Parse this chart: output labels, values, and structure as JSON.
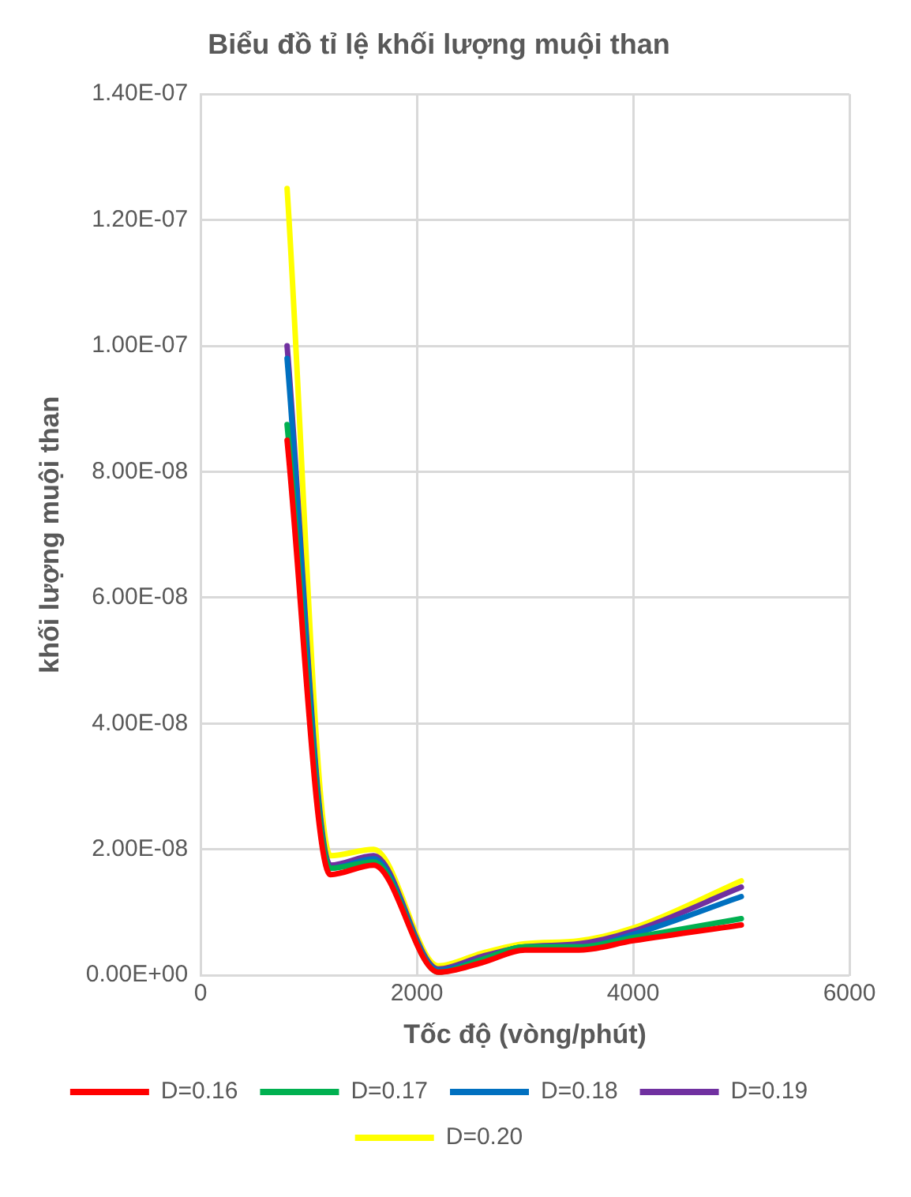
{
  "chart_data": {
    "type": "line",
    "title": "Biểu đồ tỉ lệ khối lượng muội than",
    "xlabel": "Tốc độ (vòng/phút)",
    "ylabel": "khối lượng muội than",
    "x": [
      800,
      1200,
      1600,
      2200,
      2600,
      3000,
      3500,
      4000,
      5000
    ],
    "series": [
      {
        "name": "D=0.16",
        "color": "#ff0000",
        "values": [
          8.5e-08,
          1.6e-08,
          1.75e-08,
          5e-10,
          2e-09,
          4e-09,
          4e-09,
          5.5e-09,
          8e-09
        ]
      },
      {
        "name": "D=0.17",
        "color": "#00b050",
        "values": [
          8.75e-08,
          1.7e-08,
          1.8e-08,
          5e-10,
          2.5e-09,
          4.5e-09,
          4.5e-09,
          6e-09,
          9e-09
        ]
      },
      {
        "name": "D=0.18",
        "color": "#0070c0",
        "values": [
          9.8e-08,
          1.7e-08,
          1.85e-08,
          8e-10,
          2.5e-09,
          4.5e-09,
          4.5e-09,
          6.5e-09,
          1.25e-08
        ]
      },
      {
        "name": "D=0.19",
        "color": "#7030a0",
        "values": [
          1e-07,
          1.75e-08,
          1.9e-08,
          1e-09,
          3e-09,
          4.5e-09,
          5e-09,
          7e-09,
          1.4e-08
        ]
      },
      {
        "name": "D=0.20",
        "color": "#ffff00",
        "values": [
          1.25e-07,
          1.9e-08,
          2e-08,
          1.5e-09,
          3.5e-09,
          5e-09,
          5.5e-09,
          7.5e-09,
          1.5e-08
        ]
      }
    ],
    "xlim": [
      0,
      6000
    ],
    "xticks": [
      0,
      2000,
      4000,
      6000
    ],
    "ylim": [
      0,
      1.4e-07
    ],
    "yticks": [
      {
        "value": 0,
        "label": "0.00E+00"
      },
      {
        "value": 2e-08,
        "label": "2.00E-08"
      },
      {
        "value": 4e-08,
        "label": "4.00E-08"
      },
      {
        "value": 6e-08,
        "label": "6.00E-08"
      },
      {
        "value": 8e-08,
        "label": "8.00E-08"
      },
      {
        "value": 1e-07,
        "label": "1.00E-07"
      },
      {
        "value": 1.2e-07,
        "label": "1.20E-07"
      },
      {
        "value": 1.4e-07,
        "label": "1.40E-07"
      }
    ],
    "grid": true,
    "legend": "bottom",
    "marker": "none",
    "line_style": "solid"
  }
}
